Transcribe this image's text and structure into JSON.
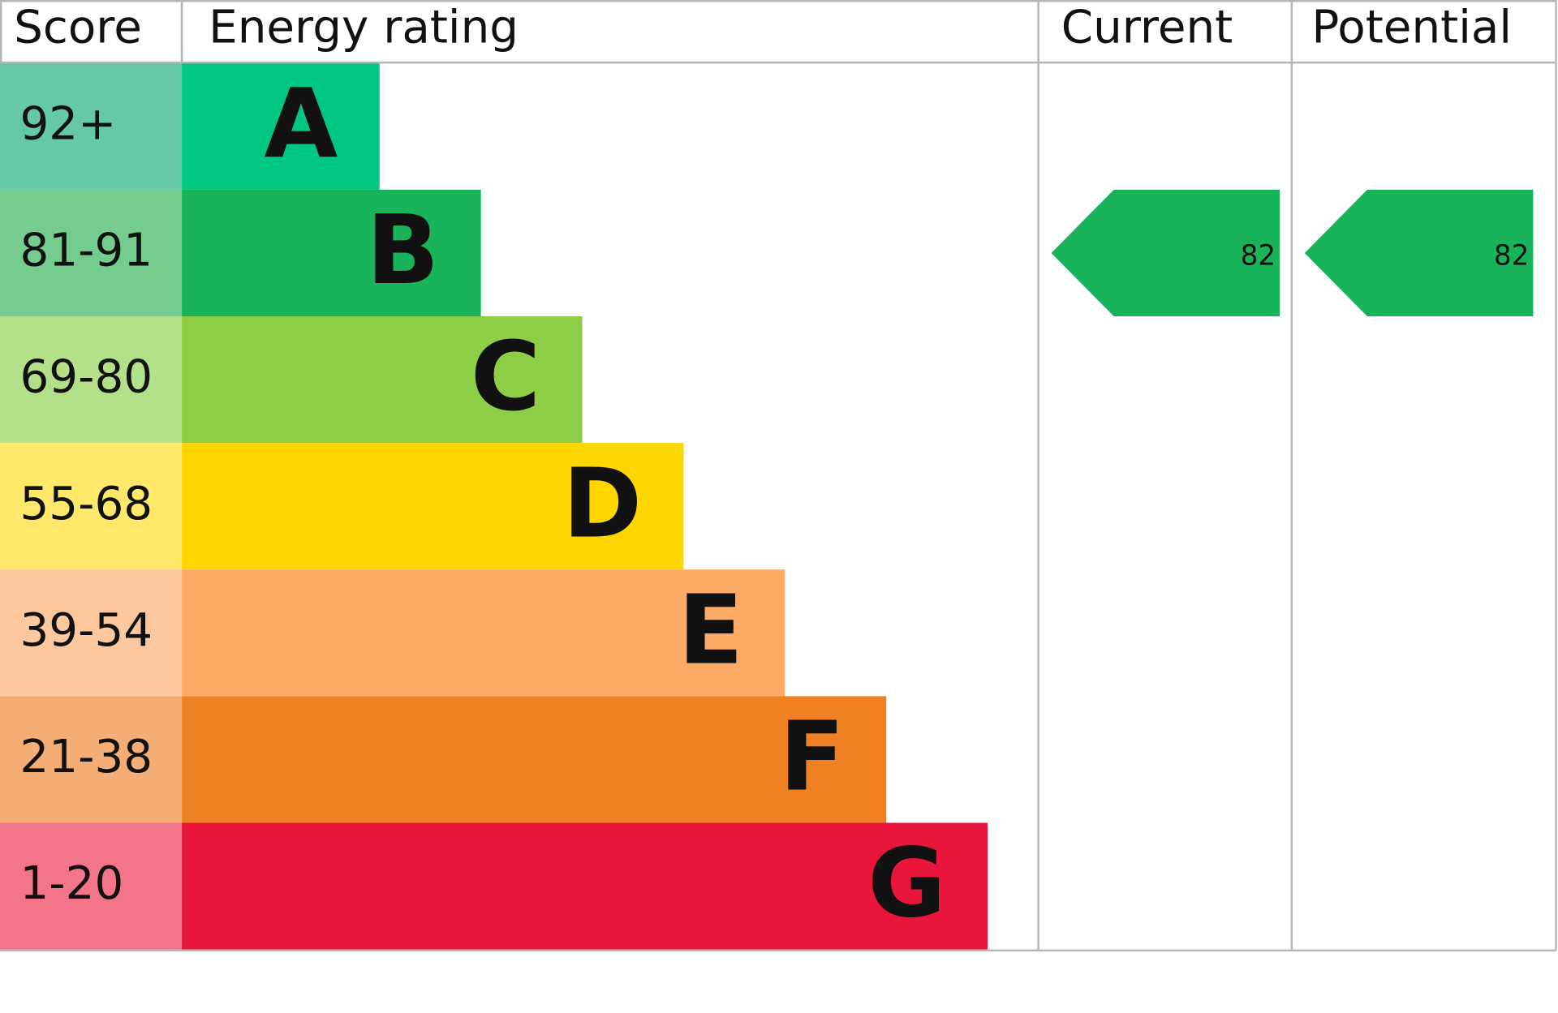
{
  "header": {
    "score": "Score",
    "rating": "Energy rating",
    "current": "Current",
    "potential": "Potential"
  },
  "bands": [
    {
      "score": "92+",
      "letter": "A",
      "color": "#00c781",
      "score_color": "#65c9a5"
    },
    {
      "score": "81-91",
      "letter": "B",
      "color": "#19b459",
      "score_color": "#74cc8e"
    },
    {
      "score": "69-80",
      "letter": "C",
      "color": "#8dce46",
      "score_color": "#b4e08a"
    },
    {
      "score": "55-68",
      "letter": "D",
      "color": "#ffd500",
      "score_color": "#ffe86a"
    },
    {
      "score": "39-54",
      "letter": "E",
      "color": "#fcaa65",
      "score_color": "#fdc89e"
    },
    {
      "score": "21-38",
      "letter": "F",
      "color": "#ef8023",
      "score_color": "#f4ad75"
    },
    {
      "score": "1-20",
      "letter": "G",
      "color": "#e9153b",
      "score_color": "#f27589"
    }
  ],
  "current": 82,
  "potential": 82
}
